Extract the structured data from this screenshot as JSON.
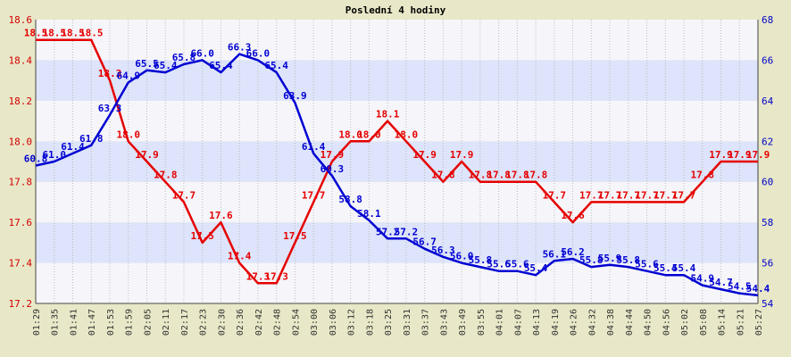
{
  "chart_data": {
    "type": "line",
    "title": "Poslední 4 hodiny",
    "colors": {
      "background": "#e8e8c8",
      "plot_band_light": "#f6f6fa",
      "plot_band_dark": "#dde4fb",
      "left_series": "#e60000",
      "right_series": "#0000d2",
      "left_axis_text": "#d40000",
      "right_axis_text": "#0000c8",
      "grid": "#bcbcbc"
    },
    "x": [
      "01:29",
      "01:35",
      "01:41",
      "01:47",
      "01:53",
      "01:59",
      "02:05",
      "02:11",
      "02:17",
      "02:23",
      "02:30",
      "02:36",
      "02:42",
      "02:48",
      "02:54",
      "03:00",
      "03:06",
      "03:12",
      "03:18",
      "03:25",
      "03:31",
      "03:37",
      "03:43",
      "03:49",
      "03:55",
      "04:01",
      "04:07",
      "04:13",
      "04:19",
      "04:26",
      "04:32",
      "04:38",
      "04:44",
      "04:50",
      "04:56",
      "05:02",
      "05:08",
      "05:14",
      "05:21",
      "05:27"
    ],
    "left_axis": {
      "ylim": [
        17.2,
        18.6
      ],
      "ticks": [
        "17.2",
        "17.4",
        "17.6",
        "17.8",
        "18.0",
        "18.2",
        "18.4",
        "18.6"
      ]
    },
    "right_axis": {
      "ylim": [
        54,
        68
      ],
      "ticks": [
        "54",
        "56",
        "58",
        "60",
        "62",
        "64",
        "66",
        "68"
      ]
    },
    "series": [
      {
        "axis": "left",
        "color": "#e60000",
        "values": [
          18.5,
          18.5,
          18.5,
          18.5,
          18.3,
          18.0,
          17.9,
          17.8,
          17.7,
          17.5,
          17.6,
          17.4,
          17.3,
          17.3,
          17.5,
          17.7,
          17.9,
          18.0,
          18.0,
          18.1,
          18.0,
          17.9,
          17.8,
          17.9,
          17.8,
          17.8,
          17.8,
          17.8,
          17.7,
          17.6,
          17.7,
          17.7,
          17.7,
          17.7,
          17.7,
          17.7,
          17.8,
          17.9,
          17.9,
          17.9
        ]
      },
      {
        "axis": "right",
        "color": "#0000d2",
        "values": [
          60.8,
          61.0,
          61.4,
          61.8,
          63.3,
          64.9,
          65.5,
          65.4,
          65.8,
          66.0,
          65.4,
          66.3,
          66.0,
          65.4,
          63.9,
          61.4,
          60.3,
          58.8,
          58.1,
          57.2,
          57.2,
          56.7,
          56.3,
          56.0,
          55.8,
          55.6,
          55.6,
          55.4,
          56.1,
          56.2,
          55.8,
          55.9,
          55.8,
          55.6,
          55.4,
          55.4,
          54.9,
          54.7,
          54.5,
          54.4
        ]
      }
    ],
    "data_labels_left": [
      "18.5",
      "18.5",
      "18.5",
      "18.5",
      "18.3",
      "18.0",
      "17.9",
      "17.8",
      "17.7",
      "17.5",
      "17.6",
      "17.4",
      "17.3",
      "17.3",
      "17.5",
      "17.7",
      "17.9",
      "18.0",
      "18.0",
      "18.1",
      "18.0",
      "17.9",
      "17.8",
      "17.9",
      "17.8",
      "17.8",
      "17.8",
      "17.8",
      "17.7",
      "17.6",
      "17.7",
      "17.7",
      "17.7",
      "17.7",
      "17.7",
      "17.7",
      "17.8",
      "17.9",
      "17.9",
      "17.9"
    ],
    "data_labels_right": [
      "60.8",
      "61.0",
      "61.4",
      "61.8",
      "63.3",
      "64.9",
      "65.5",
      "65.4",
      "65.8",
      "66.0",
      "65.4",
      "66.3",
      "66.0",
      "65.4",
      "63.9",
      "61.4",
      "60.3",
      "58.8",
      "58.1",
      "57.2",
      "57.2",
      "56.7",
      "56.3",
      "56.0",
      "55.8",
      "55.6",
      "55.6",
      "55.4",
      "56.1",
      "56.2",
      "55.8",
      "55.9",
      "55.8",
      "55.6",
      "55.4",
      "55.4",
      "54.9",
      "54.7",
      "54.5",
      "54.4"
    ],
    "grid": true,
    "legend": "none"
  }
}
